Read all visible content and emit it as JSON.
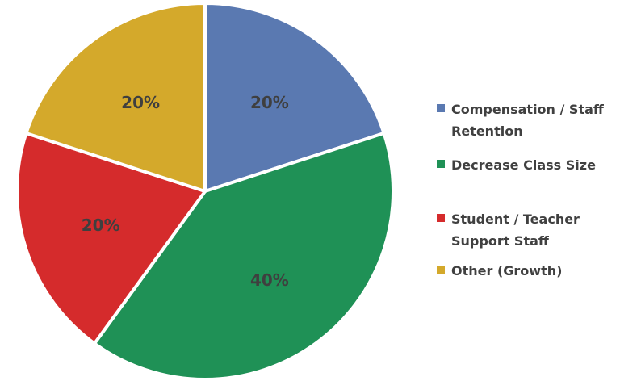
{
  "chart_data": {
    "type": "pie",
    "title": "",
    "start_angle_deg": 0,
    "direction": "clockwise",
    "legend_position": "right",
    "slices": [
      {
        "label": "Compensation / Staff Retention",
        "value": 20,
        "display": "20%",
        "color": "#5a79b1"
      },
      {
        "label": "Decrease Class Size",
        "value": 40,
        "display": "40%",
        "color": "#1f9156"
      },
      {
        "label": "Student / Teacher Support Staff",
        "value": 20,
        "display": "20%",
        "color": "#d52b2c"
      },
      {
        "label": "Other (Growth)",
        "value": 20,
        "display": "20%",
        "color": "#d4a92b"
      }
    ]
  }
}
